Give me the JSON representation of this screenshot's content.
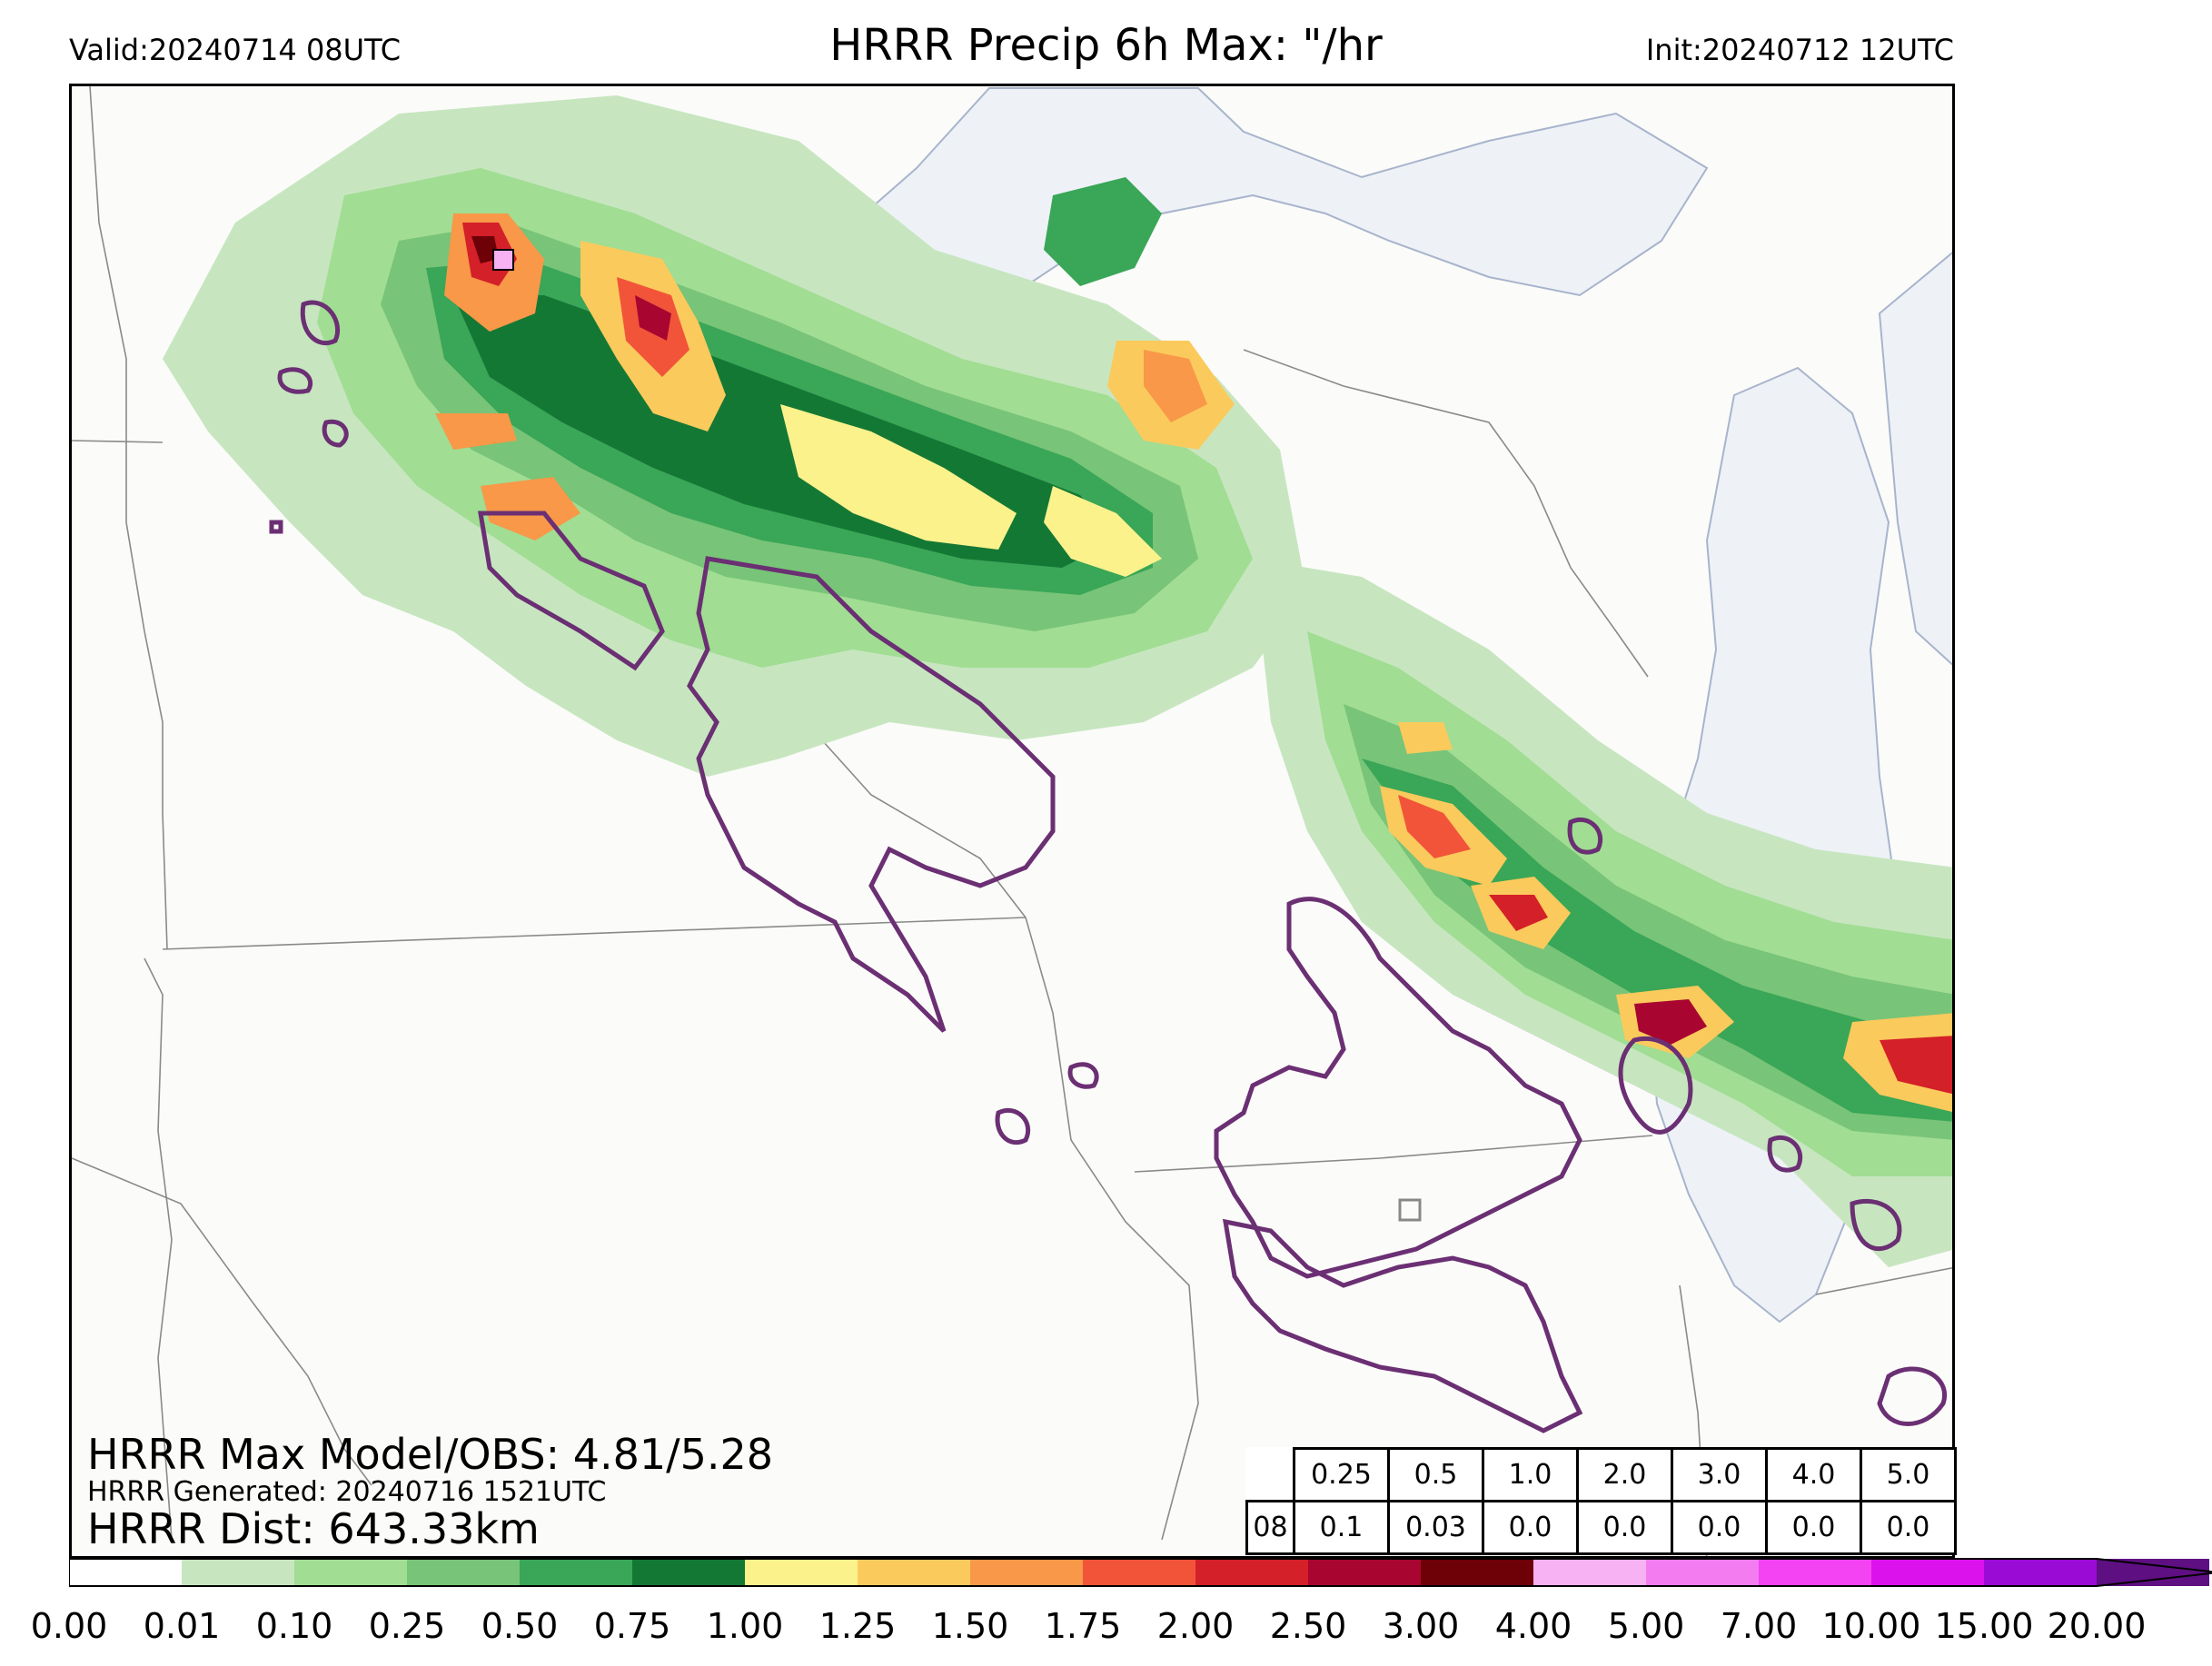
{
  "header": {
    "valid": "Valid:20240714 08UTC",
    "title": "HRRR Precip 6h Max: \"/hr",
    "init": "Init:20240712 12UTC"
  },
  "stats": {
    "max_model_obs": "HRRR Max Model/OBS: 4.81/5.28",
    "generated": "HRRR Generated: 20240716 1521UTC",
    "distance": "HRRR Dist: 643.33km"
  },
  "threshold_table": {
    "header": [
      "0.25",
      "0.5",
      "1.0",
      "2.0",
      "3.0",
      "4.0",
      "5.0"
    ],
    "row_label": "08",
    "values": [
      "0.1",
      "0.03",
      "0.0",
      "0.0",
      "0.0",
      "0.0",
      "0.0"
    ]
  },
  "colorbar": {
    "ticks": [
      "0.00",
      "0.01",
      "0.10",
      "0.25",
      "0.50",
      "0.75",
      "1.00",
      "1.25",
      "1.50",
      "1.75",
      "2.00",
      "2.50",
      "3.00",
      "4.00",
      "5.00",
      "7.00",
      "10.00",
      "15.00",
      "20.00"
    ],
    "colors": [
      "#ffffff",
      "#c7e6c0",
      "#a1dd93",
      "#78c478",
      "#3aa657",
      "#147835",
      "#fbf28c",
      "#fbca5c",
      "#f89848",
      "#f2543a",
      "#d42028",
      "#a80630",
      "#6e0007",
      "#f6b2f2",
      "#f27cf0",
      "#f343f2",
      "#dc12ed",
      "#9b0bd6",
      "#5e0f82"
    ]
  },
  "map_colors": {
    "background": "#fbfbf9",
    "lake": "#eef2f7",
    "border": "#888888",
    "obs_contour": "#6b2f73"
  }
}
